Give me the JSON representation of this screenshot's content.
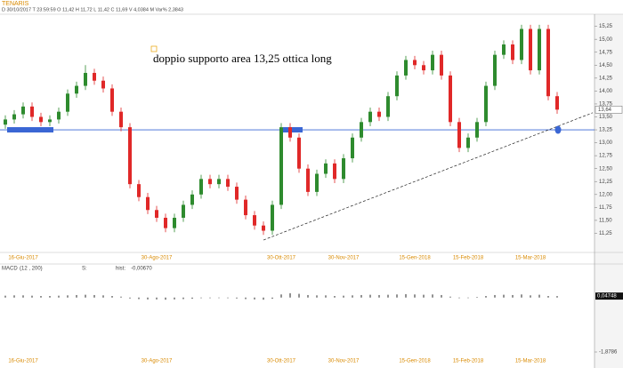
{
  "chart_data": {
    "type": "candlestick",
    "title": "TENARIS",
    "info": "D 30/10/2017   T 23:59:59   O 11,42   H 11,72   L 11,42   C 11,69   V 4,0384 M   Var% 2,3843",
    "annotation": "doppio supporto area 13,25 ottica long",
    "categories": [
      null,
      null,
      "16-Giu-2017",
      null,
      null,
      null,
      null,
      null,
      null,
      null,
      null,
      null,
      null,
      null,
      null,
      null,
      null,
      "30-Ago-2017",
      null,
      null,
      null,
      null,
      null,
      null,
      null,
      null,
      null,
      null,
      null,
      null,
      null,
      "30-Ott-2017",
      null,
      null,
      null,
      null,
      null,
      null,
      "30-Nov-2017",
      null,
      null,
      null,
      null,
      null,
      null,
      null,
      "15-Gen-2018",
      null,
      null,
      null,
      null,
      null,
      "15-Feb-2018",
      null,
      null,
      null,
      null,
      null,
      null,
      "15-Mar-2018",
      null,
      null,
      null
    ],
    "open": [
      13.35,
      13.45,
      13.55,
      13.7,
      13.5,
      13.4,
      13.45,
      13.6,
      13.95,
      14.1,
      14.35,
      14.2,
      14.05,
      13.6,
      13.3,
      12.2,
      11.95,
      11.7,
      11.55,
      11.35,
      11.55,
      11.8,
      12.0,
      12.3,
      12.2,
      12.3,
      12.15,
      11.9,
      11.6,
      11.4,
      11.3,
      11.8,
      13.3,
      13.1,
      12.5,
      12.05,
      12.4,
      12.6,
      12.3,
      12.7,
      13.1,
      13.4,
      13.6,
      13.5,
      13.9,
      14.3,
      14.6,
      14.5,
      14.4,
      14.7,
      14.3,
      13.4,
      12.9,
      13.1,
      13.4,
      14.1,
      14.7,
      14.9,
      14.6,
      15.2,
      14.4,
      15.2,
      13.9
    ],
    "high": [
      13.53,
      13.63,
      13.78,
      13.78,
      13.58,
      13.53,
      13.68,
      14.03,
      14.18,
      14.5,
      14.43,
      14.28,
      14.13,
      13.68,
      13.38,
      12.28,
      12.03,
      11.78,
      11.63,
      11.63,
      11.88,
      12.08,
      12.38,
      12.38,
      12.38,
      12.38,
      12.23,
      11.98,
      11.68,
      11.48,
      11.88,
      13.38,
      13.38,
      13.18,
      12.58,
      12.48,
      12.68,
      12.68,
      12.78,
      13.18,
      13.48,
      13.68,
      13.68,
      13.98,
      14.38,
      14.68,
      14.68,
      14.58,
      14.78,
      14.78,
      14.38,
      13.48,
      13.18,
      13.48,
      14.18,
      14.78,
      14.98,
      14.98,
      15.28,
      15.28,
      15.28,
      15.28,
      13.98
    ],
    "low": [
      13.27,
      13.37,
      13.47,
      13.42,
      13.32,
      13.32,
      13.37,
      13.52,
      13.87,
      14.02,
      14.12,
      13.97,
      13.52,
      13.22,
      12.12,
      11.87,
      11.62,
      11.47,
      11.27,
      11.27,
      11.47,
      11.72,
      11.92,
      12.12,
      12.12,
      12.07,
      11.82,
      11.52,
      11.32,
      11.22,
      11.22,
      11.72,
      13.02,
      12.42,
      11.97,
      11.97,
      12.32,
      12.22,
      12.22,
      12.62,
      13.02,
      13.32,
      13.42,
      13.42,
      13.82,
      14.22,
      14.42,
      14.32,
      14.32,
      14.22,
      13.32,
      12.82,
      12.82,
      13.02,
      13.32,
      14.02,
      14.62,
      14.52,
      14.52,
      14.32,
      14.32,
      13.82,
      13.56
    ],
    "close": [
      13.45,
      13.55,
      13.7,
      13.5,
      13.4,
      13.45,
      13.6,
      13.95,
      14.1,
      14.35,
      14.2,
      14.05,
      13.6,
      13.3,
      12.2,
      11.95,
      11.7,
      11.55,
      11.35,
      11.55,
      11.8,
      12.0,
      12.3,
      12.2,
      12.3,
      12.15,
      11.9,
      11.6,
      11.4,
      11.3,
      11.8,
      13.3,
      13.1,
      12.5,
      12.05,
      12.4,
      12.6,
      12.3,
      12.7,
      13.1,
      13.4,
      13.6,
      13.5,
      13.9,
      14.3,
      14.6,
      14.5,
      14.4,
      14.7,
      14.3,
      13.4,
      12.9,
      13.1,
      13.4,
      14.1,
      14.7,
      14.9,
      14.6,
      15.2,
      14.4,
      15.2,
      13.9,
      13.64
    ],
    "up_color": "#2e8b2e",
    "down_color": "#e02828",
    "last_label": {
      "value": 13.64,
      "label": "13,64"
    },
    "ylim": [
      11.0,
      15.45
    ],
    "yticks": [
      {
        "value": 11.25,
        "label": "11,25"
      },
      {
        "value": 11.5,
        "label": "11,50"
      },
      {
        "value": 11.75,
        "label": "11,75"
      },
      {
        "value": 12.0,
        "label": "12,00"
      },
      {
        "value": 12.25,
        "label": "12,25"
      },
      {
        "value": 12.5,
        "label": "12,50"
      },
      {
        "value": 12.75,
        "label": "12,75"
      },
      {
        "value": 13.0,
        "label": "13,00"
      },
      {
        "value": 13.25,
        "label": "13,25"
      },
      {
        "value": 13.5,
        "label": "13,50"
      },
      {
        "value": 13.75,
        "label": "13,75"
      },
      {
        "value": 14.0,
        "label": "14,00"
      },
      {
        "value": 14.25,
        "label": "14,25"
      },
      {
        "value": 14.5,
        "label": "14,50"
      },
      {
        "value": 14.75,
        "label": "14,75"
      },
      {
        "value": 15.0,
        "label": "15,00"
      },
      {
        "value": 15.25,
        "label": "15,25"
      }
    ],
    "support_level": 13.25,
    "support_color": "#3a66d4",
    "trendline": {
      "x": [
        29,
        66
      ],
      "y": [
        11.12,
        13.58
      ]
    },
    "macd": {
      "label": "MACD",
      "params": "(12 , 200)",
      "signal_label": "S:",
      "hist_label": "hist:",
      "hist_value": "-0,00670",
      "values": [
        0.06,
        0.07,
        0.07,
        0.06,
        0.05,
        0.05,
        0.06,
        0.07,
        0.08,
        0.09,
        0.08,
        0.07,
        0.05,
        0.03,
        -0.03,
        -0.05,
        -0.06,
        -0.06,
        -0.07,
        -0.06,
        -0.05,
        -0.04,
        -0.02,
        -0.02,
        -0.01,
        -0.02,
        -0.03,
        -0.05,
        -0.06,
        -0.07,
        -0.04,
        0.1,
        0.14,
        0.12,
        0.08,
        0.07,
        0.07,
        0.05,
        0.06,
        0.07,
        0.08,
        0.09,
        0.08,
        0.09,
        0.1,
        0.11,
        0.1,
        0.09,
        0.1,
        0.08,
        0.03,
        -0.02,
        -0.01,
        0.02,
        0.05,
        0.08,
        0.09,
        0.08,
        0.1,
        0.07,
        0.09,
        0.05,
        0.04748
      ],
      "last_label": {
        "value": 0.04748,
        "label": "0,04748"
      },
      "ylim": [
        -1.8786,
        1.0
      ],
      "yticks": [
        {
          "value": -1.8786,
          "label": "-1,8786"
        }
      ],
      "color": "#222222"
    }
  }
}
